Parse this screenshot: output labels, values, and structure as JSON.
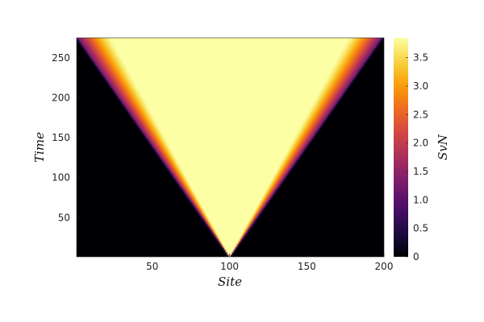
{
  "chart_data": {
    "type": "heatmap",
    "title": "",
    "xlabel": "Site",
    "ylabel": "Time",
    "colorbar_label": "SvN",
    "xlim": [
      1,
      200
    ],
    "ylim": [
      1,
      275
    ],
    "zlim": [
      0,
      3.85
    ],
    "x_ticks": [
      50,
      100,
      150,
      200
    ],
    "y_ticks": [
      50,
      100,
      150,
      200,
      250
    ],
    "colorbar_ticks": [
      0,
      0.5,
      1.0,
      1.5,
      2.0,
      2.5,
      3.0,
      3.5
    ],
    "x_tick_labels": [
      "50",
      "100",
      "150",
      "200"
    ],
    "y_tick_labels": [
      "50",
      "100",
      "150",
      "200",
      "250"
    ],
    "colorbar_tick_labels": [
      "0",
      "0.5",
      "1.0",
      "1.5",
      "2.0",
      "2.5",
      "3.0",
      "3.5"
    ],
    "colormap": "magma",
    "colormap_stops": [
      "#000004",
      "#1b0c41",
      "#4a0c6b",
      "#781c6d",
      "#a52c60",
      "#cf4446",
      "#ed6925",
      "#fb9b06",
      "#f7d13d",
      "#fcffa4"
    ],
    "field_description": {
      "center_site": 100,
      "light_cone_speed_sites_per_time": 0.36,
      "saturated_region_speed_sites_per_time": 0.28,
      "edge_value_at_cone_front": 1.2,
      "max_value": 3.85
    },
    "sample_rows": [
      {
        "time": 50,
        "sites": [
          85,
          90,
          95,
          100,
          105,
          110,
          115
        ],
        "values": [
          0.0,
          1.5,
          3.4,
          3.85,
          3.4,
          1.5,
          0.0
        ]
      },
      {
        "time": 150,
        "sites": [
          45,
          55,
          65,
          80,
          100,
          120,
          135,
          145,
          155
        ],
        "values": [
          0.0,
          1.3,
          2.5,
          3.8,
          3.85,
          3.8,
          2.5,
          1.3,
          0.0
        ]
      },
      {
        "time": 270,
        "sites": [
          3,
          10,
          30,
          50,
          100,
          150,
          170,
          190,
          198
        ],
        "values": [
          0.5,
          1.3,
          2.4,
          3.0,
          3.85,
          3.0,
          2.4,
          1.3,
          0.5
        ]
      }
    ],
    "grid": false,
    "legend": "none"
  }
}
